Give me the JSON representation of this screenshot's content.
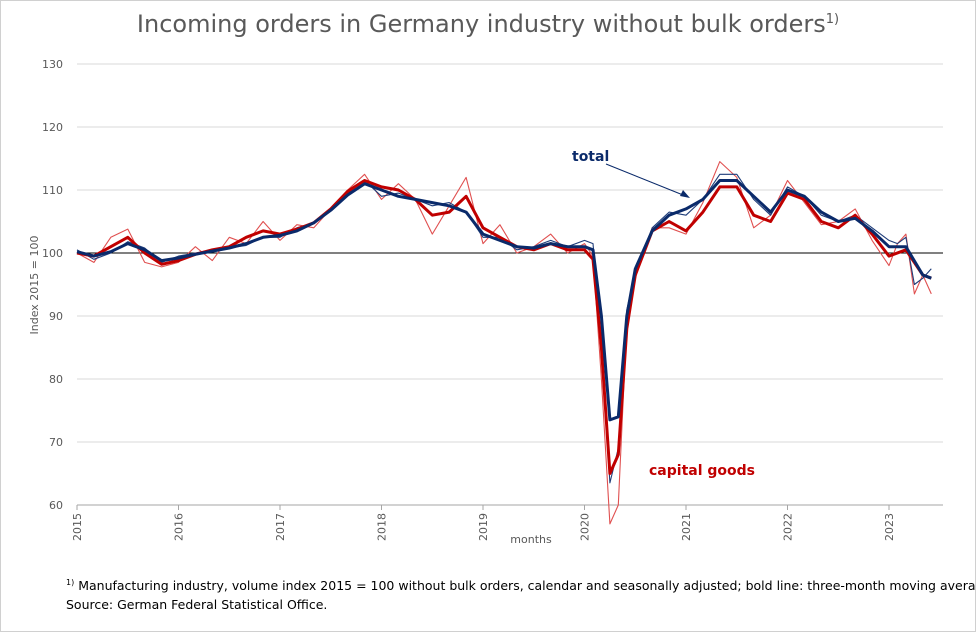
{
  "chart_data": {
    "type": "line",
    "title": "Incoming orders in Germany industry without bulk orders",
    "title_marker": "1)",
    "xlabel": "months",
    "ylabel": "Index 2015 = 100",
    "ylim": [
      60,
      130
    ],
    "yticks": [
      60,
      70,
      80,
      90,
      100,
      110,
      120,
      130
    ],
    "xticks": [
      "2015",
      "2016",
      "2017",
      "2018",
      "2019",
      "2020",
      "2021",
      "2022",
      "2023"
    ],
    "x_start": "2015-01",
    "x_end": "2023-06",
    "grid": true,
    "reference_line": 100,
    "annotations": {
      "total": "total",
      "capital_goods": "capital goods"
    },
    "series": [
      {
        "name": "total",
        "style": "monthly",
        "color": "#1f3d7a",
        "x": [
          "2015-01",
          "2015-03",
          "2015-05",
          "2015-07",
          "2015-09",
          "2015-11",
          "2016-01",
          "2016-03",
          "2016-05",
          "2016-07",
          "2016-09",
          "2016-11",
          "2017-01",
          "2017-03",
          "2017-05",
          "2017-07",
          "2017-09",
          "2017-11",
          "2018-01",
          "2018-03",
          "2018-05",
          "2018-07",
          "2018-09",
          "2018-11",
          "2019-01",
          "2019-03",
          "2019-05",
          "2019-07",
          "2019-09",
          "2019-11",
          "2020-01",
          "2020-02",
          "2020-03",
          "2020-04",
          "2020-05",
          "2020-06",
          "2020-07",
          "2020-09",
          "2020-11",
          "2021-01",
          "2021-03",
          "2021-05",
          "2021-07",
          "2021-09",
          "2021-11",
          "2022-01",
          "2022-03",
          "2022-05",
          "2022-07",
          "2022-09",
          "2022-11",
          "2023-01",
          "2023-02",
          "2023-03",
          "2023-04",
          "2023-05",
          "2023-06"
        ],
        "y": [
          100.5,
          99.0,
          100.0,
          101.8,
          100.8,
          98.5,
          99.5,
          100.0,
          100.5,
          100.8,
          101.2,
          102.5,
          102.5,
          104.0,
          104.8,
          107.0,
          109.5,
          111.5,
          109.0,
          109.5,
          108.5,
          107.5,
          108.0,
          106.5,
          102.5,
          102.5,
          100.5,
          101.0,
          102.0,
          101.0,
          102.0,
          101.5,
          86.0,
          63.5,
          69.0,
          91.0,
          97.0,
          104.0,
          106.5,
          106.0,
          108.5,
          112.5,
          112.5,
          108.5,
          106.0,
          110.5,
          109.0,
          106.0,
          105.0,
          106.0,
          104.0,
          102.0,
          101.5,
          102.5,
          95.0,
          96.0,
          97.5
        ]
      },
      {
        "name": "total",
        "style": "three-month moving average",
        "color": "#0a2a6a",
        "x": [
          "2015-01",
          "2015-03",
          "2015-05",
          "2015-07",
          "2015-09",
          "2015-11",
          "2016-01",
          "2016-03",
          "2016-05",
          "2016-07",
          "2016-09",
          "2016-11",
          "2017-01",
          "2017-03",
          "2017-05",
          "2017-07",
          "2017-09",
          "2017-11",
          "2018-01",
          "2018-03",
          "2018-05",
          "2018-07",
          "2018-09",
          "2018-11",
          "2019-01",
          "2019-03",
          "2019-05",
          "2019-07",
          "2019-09",
          "2019-11",
          "2020-01",
          "2020-02",
          "2020-03",
          "2020-04",
          "2020-05",
          "2020-06",
          "2020-07",
          "2020-09",
          "2020-11",
          "2021-01",
          "2021-03",
          "2021-05",
          "2021-07",
          "2021-09",
          "2021-11",
          "2022-01",
          "2022-03",
          "2022-05",
          "2022-07",
          "2022-09",
          "2022-11",
          "2023-01",
          "2023-03",
          "2023-05",
          "2023-06"
        ],
        "y": [
          100.2,
          99.5,
          100.2,
          101.5,
          100.5,
          98.8,
          99.2,
          99.8,
          100.3,
          100.8,
          101.5,
          102.5,
          102.8,
          103.5,
          104.8,
          106.8,
          109.2,
          111.0,
          110.0,
          109.0,
          108.5,
          108.0,
          107.5,
          106.5,
          103.0,
          102.0,
          101.0,
          100.8,
          101.5,
          101.0,
          101.0,
          100.5,
          90.0,
          73.5,
          74.0,
          90.0,
          97.5,
          103.5,
          106.0,
          107.0,
          108.5,
          111.5,
          111.5,
          109.0,
          106.5,
          110.0,
          109.0,
          106.5,
          105.0,
          105.5,
          103.5,
          101.0,
          101.0,
          96.5,
          96.0
        ]
      },
      {
        "name": "capital goods",
        "style": "monthly",
        "color": "#e05050",
        "x": [
          "2015-01",
          "2015-03",
          "2015-05",
          "2015-07",
          "2015-09",
          "2015-11",
          "2016-01",
          "2016-03",
          "2016-05",
          "2016-07",
          "2016-09",
          "2016-11",
          "2017-01",
          "2017-03",
          "2017-05",
          "2017-07",
          "2017-09",
          "2017-11",
          "2018-01",
          "2018-03",
          "2018-05",
          "2018-07",
          "2018-09",
          "2018-11",
          "2019-01",
          "2019-03",
          "2019-05",
          "2019-07",
          "2019-09",
          "2019-11",
          "2020-01",
          "2020-02",
          "2020-03",
          "2020-04",
          "2020-05",
          "2020-06",
          "2020-07",
          "2020-09",
          "2020-11",
          "2021-01",
          "2021-03",
          "2021-05",
          "2021-07",
          "2021-09",
          "2021-11",
          "2022-01",
          "2022-03",
          "2022-05",
          "2022-07",
          "2022-09",
          "2022-11",
          "2023-01",
          "2023-02",
          "2023-03",
          "2023-04",
          "2023-05",
          "2023-06"
        ],
        "y": [
          100.0,
          98.5,
          102.5,
          103.8,
          98.5,
          97.8,
          98.5,
          101.0,
          98.8,
          102.5,
          101.5,
          105.0,
          102.0,
          104.5,
          104.0,
          107.0,
          110.0,
          112.5,
          108.5,
          111.0,
          108.5,
          103.0,
          107.5,
          112.0,
          101.5,
          104.5,
          100.0,
          101.0,
          103.0,
          100.0,
          101.5,
          99.5,
          80.0,
          57.0,
          60.0,
          89.0,
          96.0,
          104.0,
          104.0,
          103.0,
          108.0,
          114.5,
          112.0,
          104.0,
          106.0,
          111.5,
          108.0,
          104.5,
          105.0,
          107.0,
          102.0,
          98.0,
          101.5,
          103.0,
          93.5,
          96.5,
          93.5
        ]
      },
      {
        "name": "capital goods",
        "style": "three-month moving average",
        "color": "#c00000",
        "x": [
          "2015-01",
          "2015-03",
          "2015-05",
          "2015-07",
          "2015-09",
          "2015-11",
          "2016-01",
          "2016-03",
          "2016-05",
          "2016-07",
          "2016-09",
          "2016-11",
          "2017-01",
          "2017-03",
          "2017-05",
          "2017-07",
          "2017-09",
          "2017-11",
          "2018-01",
          "2018-03",
          "2018-05",
          "2018-07",
          "2018-09",
          "2018-11",
          "2019-01",
          "2019-03",
          "2019-05",
          "2019-07",
          "2019-09",
          "2019-11",
          "2020-01",
          "2020-02",
          "2020-03",
          "2020-04",
          "2020-05",
          "2020-06",
          "2020-07",
          "2020-09",
          "2020-11",
          "2021-01",
          "2021-03",
          "2021-05",
          "2021-07",
          "2021-09",
          "2021-11",
          "2022-01",
          "2022-03",
          "2022-05",
          "2022-07",
          "2022-09",
          "2022-11",
          "2023-01",
          "2023-03",
          "2023-05",
          "2023-06"
        ],
        "y": [
          100.0,
          99.5,
          101.0,
          102.5,
          100.0,
          98.2,
          98.8,
          99.8,
          100.5,
          101.0,
          102.5,
          103.5,
          103.0,
          103.8,
          104.8,
          107.0,
          109.8,
          111.5,
          110.5,
          110.0,
          108.5,
          106.0,
          106.5,
          109.0,
          104.0,
          102.5,
          101.0,
          100.5,
          101.5,
          100.5,
          100.5,
          99.0,
          85.0,
          65.0,
          68.0,
          88.0,
          96.5,
          103.5,
          105.0,
          103.5,
          106.5,
          110.5,
          110.5,
          106.0,
          105.0,
          109.5,
          108.5,
          105.0,
          104.0,
          106.0,
          103.0,
          99.5,
          100.5,
          96.5,
          96.0
        ]
      }
    ]
  },
  "footnote": {
    "marker": "1)",
    "line1": "Manufacturing industry, volume index 2015 = 100  without bulk orders, calendar and seasonally adjusted; bold line: three-month moving average.",
    "line2": "Source: German Federal Statistical Office."
  }
}
